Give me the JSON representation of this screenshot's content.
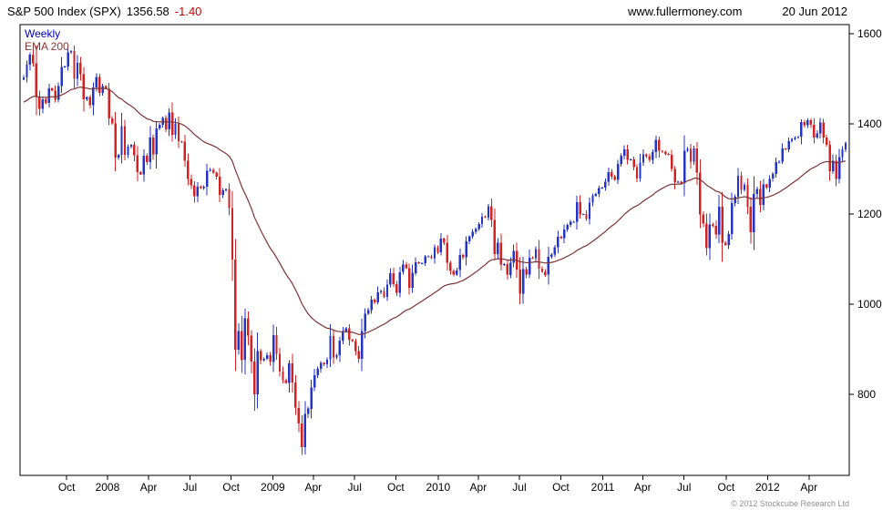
{
  "header": {
    "title": "S&P 500 Index (SPX)",
    "price": "1356.58",
    "change": "-1.40",
    "website": "www.fullermoney.com",
    "date": "20 Jun 2012"
  },
  "chart_labels": {
    "timeframe": "Weekly",
    "ema": "EMA 200",
    "copyright": "© 2012 Stockcube Research Ltd"
  },
  "colors": {
    "up_candle": "#2433c8",
    "down_candle": "#d42222",
    "ema_line": "#7d3333",
    "change_text": "#cc0000",
    "timeframe_text": "#0000bb",
    "ema_label_text": "#8b3333",
    "axis_text": "#000000",
    "border": "#000000",
    "copyright_text": "#909090"
  },
  "chart_data": {
    "type": "candlestick",
    "title": "S&P 500 Index (SPX) 1356.58 -1.40",
    "source": "www.fullermoney.com",
    "as_of": "20 Jun 2012",
    "timeframe": "weekly",
    "instrument": "S&P 500 Index (SPX)",
    "last_price": 1356.58,
    "change": -1.4,
    "y_axis": {
      "side": "right",
      "ticks": [
        800,
        1000,
        1200,
        1400,
        1600
      ],
      "range": [
        620,
        1620
      ]
    },
    "x_axis": {
      "start_approx": "Jul 2007",
      "end_approx": "Jun 2012",
      "labels": [
        {
          "text": "Oct",
          "week": 13.6
        },
        {
          "text": "2008",
          "week": 26.5
        },
        {
          "text": "Apr",
          "week": 39.5
        },
        {
          "text": "Jul",
          "week": 52.6
        },
        {
          "text": "Oct",
          "week": 65.6
        },
        {
          "text": "2009",
          "week": 78.8
        },
        {
          "text": "Apr",
          "week": 91.6
        },
        {
          "text": "Jul",
          "week": 104.7
        },
        {
          "text": "Oct",
          "week": 117.7
        },
        {
          "text": "2010",
          "week": 131.1
        },
        {
          "text": "Apr",
          "week": 143.8
        },
        {
          "text": "Jul",
          "week": 156.8
        },
        {
          "text": "Oct",
          "week": 169.9
        },
        {
          "text": "2011",
          "week": 183.2
        },
        {
          "text": "Apr",
          "week": 195.8
        },
        {
          "text": "Jul",
          "week": 208.9
        },
        {
          "text": "Oct",
          "week": 222.2
        },
        {
          "text": "2012",
          "week": 235.3
        },
        {
          "text": "Apr",
          "week": 248.4
        }
      ]
    },
    "ema": {
      "label": "EMA 200",
      "period_weeks": 40,
      "initial": 1445
    },
    "weekly_closes": [
      1503,
      1531,
      1553,
      1534,
      1459,
      1433,
      1454,
      1446,
      1479,
      1474,
      1453,
      1484,
      1526,
      1527,
      1558,
      1561,
      1500,
      1535,
      1510,
      1454,
      1459,
      1441,
      1481,
      1504,
      1468,
      1484,
      1478,
      1412,
      1401,
      1325,
      1331,
      1395,
      1331,
      1349,
      1353,
      1330,
      1293,
      1288,
      1329,
      1315,
      1370,
      1332,
      1390,
      1398,
      1413,
      1388,
      1425,
      1376,
      1400,
      1361,
      1360,
      1318,
      1278,
      1263,
      1239,
      1260,
      1257,
      1260,
      1296,
      1298,
      1292,
      1283,
      1242,
      1252,
      1255,
      1213,
      1099,
      899,
      940,
      876,
      968,
      930,
      873,
      800,
      896,
      876,
      879,
      887,
      872,
      931,
      890,
      850,
      831,
      825,
      868,
      826,
      770,
      735,
      683,
      756,
      768,
      815,
      842,
      856,
      869,
      866,
      877,
      929,
      882,
      887,
      919,
      940,
      946,
      921,
      918,
      896,
      879,
      940,
      979,
      987,
      1010,
      1004,
      1026,
      1029,
      1016,
      1043,
      1068,
      1044,
      1025,
      1071,
      1088,
      1080,
      1036,
      1069,
      1093,
      1091,
      1091,
      1106,
      1106,
      1102,
      1126,
      1115,
      1145,
      1136,
      1092,
      1074,
      1066,
      1075,
      1109,
      1104,
      1139,
      1150,
      1160,
      1166,
      1178,
      1194,
      1192,
      1217,
      1187,
      1111,
      1136,
      1088,
      1089,
      1065,
      1092,
      1118,
      1077,
      1023,
      1078,
      1065,
      1103,
      1102,
      1122,
      1079,
      1072,
      1065,
      1105,
      1110,
      1126,
      1149,
      1146,
      1165,
      1176,
      1183,
      1183,
      1226,
      1199,
      1200,
      1189,
      1225,
      1240,
      1244,
      1257,
      1258,
      1272,
      1293,
      1283,
      1276,
      1311,
      1329,
      1343,
      1320,
      1321,
      1304,
      1279,
      1314,
      1332,
      1328,
      1320,
      1337,
      1364,
      1340,
      1338,
      1333,
      1331,
      1300,
      1271,
      1272,
      1268,
      1340,
      1344,
      1316,
      1345,
      1292,
      1199,
      1179,
      1124,
      1177,
      1174,
      1154,
      1216,
      1136,
      1131,
      1155,
      1224,
      1238,
      1285,
      1253,
      1264,
      1216,
      1159,
      1244,
      1255,
      1220,
      1265,
      1258,
      1278,
      1289,
      1315,
      1316,
      1345,
      1343,
      1361,
      1366,
      1370,
      1371,
      1404,
      1397,
      1408,
      1398,
      1370,
      1379,
      1403,
      1369,
      1353,
      1295,
      1318,
      1278,
      1326,
      1343,
      1357
    ]
  }
}
